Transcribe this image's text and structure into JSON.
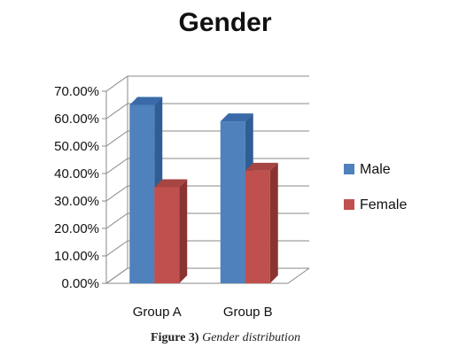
{
  "chart_data": {
    "type": "bar",
    "title": "Gender",
    "categories": [
      "Group A",
      "Group B"
    ],
    "series": [
      {
        "name": "Male",
        "values": [
          65.0,
          59.0
        ]
      },
      {
        "name": "Female",
        "values": [
          35.0,
          41.0
        ]
      }
    ],
    "ylim": [
      0,
      70
    ],
    "yticks": [
      "0.00%",
      "10.00%",
      "20.00%",
      "30.00%",
      "40.00%",
      "50.00%",
      "60.00%",
      "70.00%"
    ],
    "grid": true,
    "legend_position": "right",
    "colors": {
      "Male": {
        "front": "#4f81bd",
        "side": "#2f5d96",
        "top": "#3a6aa8"
      },
      "Female": {
        "front": "#c0504d",
        "side": "#8a3432",
        "top": "#a64542"
      }
    }
  },
  "caption": {
    "label": "Figure 3)",
    "text": "Gender distribution"
  }
}
